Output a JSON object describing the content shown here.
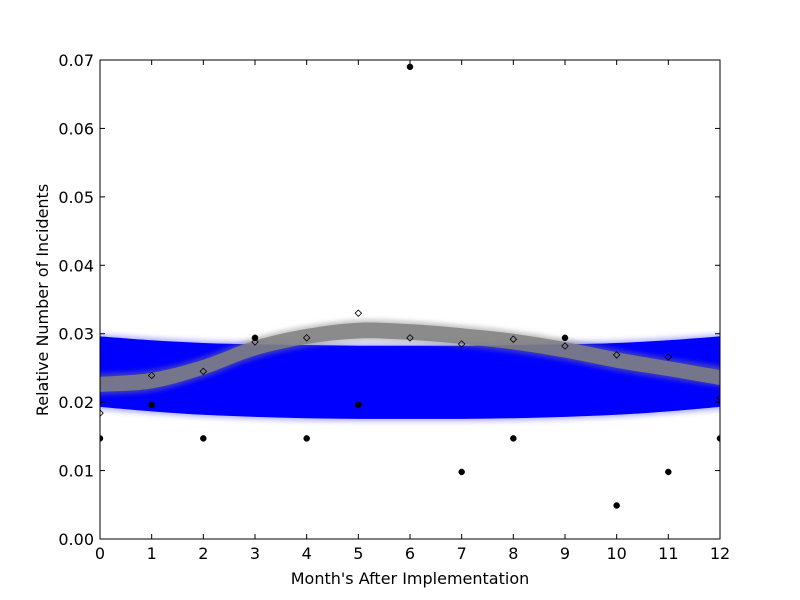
{
  "chart_data": {
    "type": "scatter",
    "title": "",
    "xlabel": "Month's After Implementation",
    "ylabel": "Relative Number of Incidents",
    "xlim": [
      0,
      12
    ],
    "ylim": [
      0,
      0.07
    ],
    "x_ticks": [
      0,
      1,
      2,
      3,
      4,
      5,
      6,
      7,
      8,
      9,
      10,
      11,
      12
    ],
    "y_ticks": [
      0.0,
      0.01,
      0.02,
      0.03,
      0.04,
      0.05,
      0.06,
      0.07
    ],
    "x_tick_labels": [
      "0",
      "1",
      "2",
      "3",
      "4",
      "5",
      "6",
      "7",
      "8",
      "9",
      "10",
      "11",
      "12"
    ],
    "y_tick_labels": [
      "0.00",
      "0.01",
      "0.02",
      "0.03",
      "0.04",
      "0.05",
      "0.06",
      "0.07"
    ],
    "grid": false,
    "series": [
      {
        "marker": "filled-circle",
        "color": "#000000",
        "x": [
          0,
          1,
          2,
          3,
          4,
          5,
          6,
          7,
          8,
          9,
          10,
          11,
          12
        ],
        "y": [
          0.0147,
          0.0196,
          0.0147,
          0.0294,
          0.0147,
          0.0196,
          0.069,
          0.0098,
          0.0147,
          0.0294,
          0.0049,
          0.0098,
          0.0147
        ]
      },
      {
        "marker": "open-diamond",
        "color": "#000000",
        "x": [
          0,
          1,
          2,
          3,
          4,
          5,
          6,
          7,
          8,
          9,
          10,
          11,
          12
        ],
        "y": [
          0.0184,
          0.0239,
          0.0245,
          0.0288,
          0.0294,
          0.033,
          0.0294,
          0.0285,
          0.0292,
          0.0282,
          0.0269,
          0.0266,
          0.0206
        ]
      }
    ],
    "bands": [
      {
        "color": "#0000ff",
        "x": [
          0,
          1,
          2,
          3,
          4,
          5,
          6,
          7,
          8,
          9,
          10,
          11,
          12
        ],
        "lower": [
          0.0195,
          0.0188,
          0.0183,
          0.018,
          0.0178,
          0.0177,
          0.0177,
          0.0177,
          0.0178,
          0.018,
          0.0183,
          0.0188,
          0.0195
        ],
        "upper": [
          0.0295,
          0.0289,
          0.0285,
          0.0283,
          0.0282,
          0.0281,
          0.0281,
          0.0281,
          0.0282,
          0.0283,
          0.0285,
          0.0289,
          0.0295
        ]
      },
      {
        "color": "#808080",
        "x": [
          0,
          1,
          2,
          3,
          4,
          5,
          6,
          7,
          8,
          9,
          10,
          11,
          12
        ],
        "lower": [
          0.0215,
          0.022,
          0.024,
          0.0268,
          0.0285,
          0.0293,
          0.0291,
          0.0285,
          0.0277,
          0.0265,
          0.025,
          0.0238,
          0.0225
        ],
        "upper": [
          0.0237,
          0.0243,
          0.0262,
          0.029,
          0.0307,
          0.0316,
          0.0314,
          0.0308,
          0.03,
          0.0288,
          0.0273,
          0.026,
          0.0247
        ]
      }
    ]
  }
}
